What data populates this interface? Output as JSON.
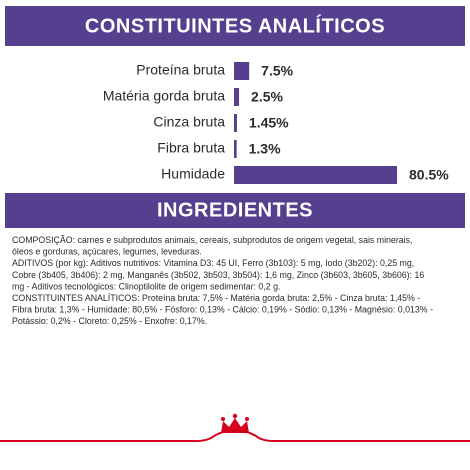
{
  "chart_data": {
    "type": "bar",
    "orientation": "horizontal",
    "title": "CONSTITUINTES ANALÍTICOS",
    "categories": [
      "Proteína bruta",
      "Matéria gorda bruta",
      "Cinza bruta",
      "Fibra bruta",
      "Humidade"
    ],
    "values": [
      7.5,
      2.5,
      1.45,
      1.3,
      80.5
    ],
    "value_labels": [
      "7.5%",
      "2.5%",
      "1.45%",
      "1.3%",
      "80.5%"
    ],
    "color": "#563f8e",
    "xlim": [
      0,
      80.5
    ]
  },
  "ingredients": {
    "title": "INGREDIENTES",
    "lines": [
      "COMPOSIÇÃO: carnes e subprodutos animais, cereais, subprodutos de origem vegetal, sais minerais,",
      "óleos e gorduras, açúcares, legumes, leveduras.",
      "ADITIVOS (por kg): Aditivos nutritivos: Vitamina D3: 45 UI, Ferro (3b103): 5 mg, Iodo (3b202): 0,25 mg,",
      "Cobre (3b405, 3b406): 2 mg, Manganês (3b502, 3b503, 3b504): 1,6 mg, Zinco (3b603, 3b605, 3b606): 16",
      "mg - Aditivos tecnológicos: Clinoptilolite de origem sedimentar: 0,2 g.",
      "CONSTITUINTES ANALÍTICOS: Proteína bruta: 7,5% - Matéria gorda bruta: 2,5% - Cinza bruta: 1,45% -",
      "Fibra bruta: 1,3% - Humidade: 80,5% - Fósforo: 0,13% - Cálcio: 0,19% - Sódio: 0,13% - Magnésio: 0,013% -",
      "Potássio: 0,2% - Cloreto: 0,25% - Enxofre: 0,17%."
    ]
  }
}
